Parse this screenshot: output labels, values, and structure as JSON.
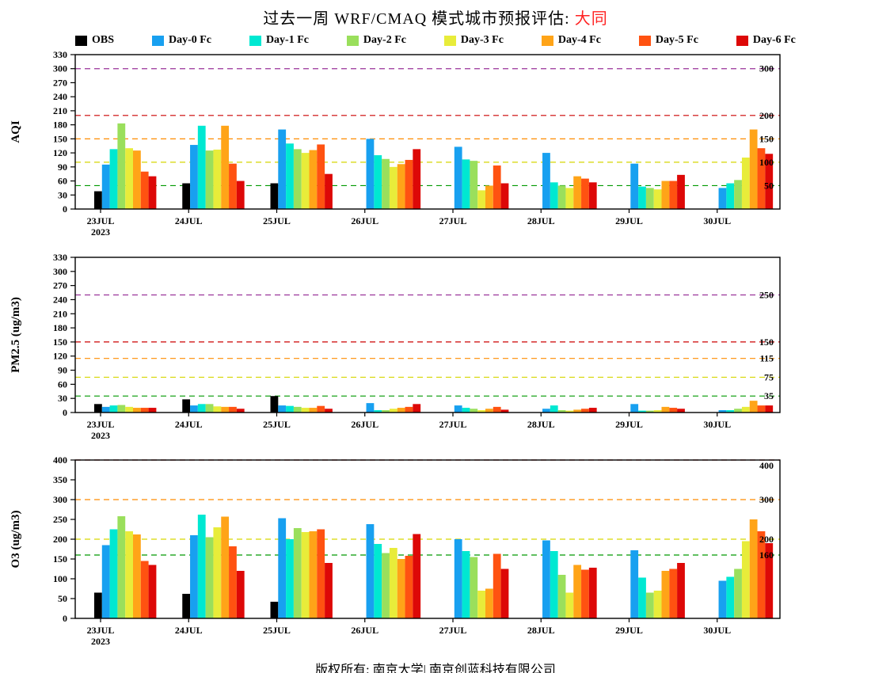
{
  "header": {
    "title_prefix": "过去一周 WRF/CMAQ 模式城市预报评估: ",
    "title_city": "大同",
    "city_color": "#ff2222"
  },
  "legend": {
    "items": [
      {
        "label": "OBS",
        "color": "#000000"
      },
      {
        "label": "Day-0 Fc",
        "color": "#18a0f0"
      },
      {
        "label": "Day-1 Fc",
        "color": "#00e8d2"
      },
      {
        "label": "Day-2 Fc",
        "color": "#9adf5c"
      },
      {
        "label": "Day-3 Fc",
        "color": "#e8ec3a"
      },
      {
        "label": "Day-4 Fc",
        "color": "#ffa418"
      },
      {
        "label": "Day-5 Fc",
        "color": "#ff5211"
      },
      {
        "label": "Day-6 Fc",
        "color": "#dd0807"
      }
    ]
  },
  "footer": {
    "text": "版权所有: 南京大学| 南京创蓝科技有限公司"
  },
  "chart_data": [
    {
      "type": "bar",
      "id": "aqi",
      "ylabel": "AQI",
      "ylim": [
        0,
        330
      ],
      "ytick_step": 30,
      "grid": false,
      "legend_position": "top",
      "categories": [
        "23JUL",
        "24JUL",
        "25JUL",
        "26JUL",
        "27JUL",
        "28JUL",
        "29JUL",
        "30JUL"
      ],
      "x_second_line": {
        "index": 0,
        "label": "2023"
      },
      "series": [
        {
          "name": "OBS",
          "values": [
            38,
            55,
            55,
            null,
            null,
            null,
            null,
            null
          ]
        },
        {
          "name": "Day-0 Fc",
          "values": [
            95,
            137,
            170,
            150,
            133,
            120,
            97,
            45
          ]
        },
        {
          "name": "Day-1 Fc",
          "values": [
            128,
            178,
            140,
            115,
            106,
            57,
            48,
            55
          ]
        },
        {
          "name": "Day-2 Fc",
          "values": [
            183,
            125,
            128,
            107,
            103,
            50,
            45,
            62
          ]
        },
        {
          "name": "Day-3 Fc",
          "values": [
            130,
            127,
            120,
            90,
            40,
            45,
            42,
            110
          ]
        },
        {
          "name": "Day-4 Fc",
          "values": [
            125,
            178,
            126,
            96,
            50,
            70,
            60,
            170
          ]
        },
        {
          "name": "Day-5 Fc",
          "values": [
            80,
            97,
            138,
            105,
            93,
            65,
            60,
            130
          ]
        },
        {
          "name": "Day-6 Fc",
          "values": [
            70,
            60,
            75,
            128,
            55,
            57,
            73,
            118
          ]
        }
      ],
      "thresholds": [
        {
          "value": 50,
          "label": "50",
          "color": "#009900"
        },
        {
          "value": 100,
          "label": "100",
          "color": "#d6d600"
        },
        {
          "value": 150,
          "label": "150",
          "color": "#ff8c00"
        },
        {
          "value": 200,
          "label": "200",
          "color": "#cc0000"
        },
        {
          "value": 300,
          "label": "300",
          "color": "#993399"
        }
      ]
    },
    {
      "type": "bar",
      "id": "pm25",
      "ylabel": "PM2.5 (ug/m3)",
      "ylim": [
        0,
        330
      ],
      "ytick_step": 30,
      "grid": false,
      "legend_position": "top",
      "categories": [
        "23JUL",
        "24JUL",
        "25JUL",
        "26JUL",
        "27JUL",
        "28JUL",
        "29JUL",
        "30JUL"
      ],
      "x_second_line": {
        "index": 0,
        "label": "2023"
      },
      "series": [
        {
          "name": "OBS",
          "values": [
            18,
            28,
            35,
            null,
            null,
            null,
            null,
            null
          ]
        },
        {
          "name": "Day-0 Fc",
          "values": [
            12,
            15,
            15,
            20,
            15,
            8,
            18,
            5
          ]
        },
        {
          "name": "Day-1 Fc",
          "values": [
            15,
            18,
            14,
            5,
            10,
            15,
            4,
            5
          ]
        },
        {
          "name": "Day-2 Fc",
          "values": [
            16,
            18,
            12,
            5,
            8,
            5,
            4,
            8
          ]
        },
        {
          "name": "Day-3 Fc",
          "values": [
            12,
            13,
            10,
            8,
            5,
            4,
            5,
            12
          ]
        },
        {
          "name": "Day-4 Fc",
          "values": [
            10,
            12,
            10,
            10,
            8,
            6,
            12,
            25
          ]
        },
        {
          "name": "Day-5 Fc",
          "values": [
            10,
            12,
            14,
            12,
            12,
            8,
            10,
            15
          ]
        },
        {
          "name": "Day-6 Fc",
          "values": [
            10,
            8,
            8,
            18,
            6,
            10,
            8,
            15
          ]
        }
      ],
      "thresholds": [
        {
          "value": 35,
          "label": "35",
          "color": "#009900"
        },
        {
          "value": 75,
          "label": "75",
          "color": "#d6d600"
        },
        {
          "value": 115,
          "label": "115",
          "color": "#ff8c00"
        },
        {
          "value": 150,
          "label": "150",
          "color": "#cc0000"
        },
        {
          "value": 250,
          "label": "250",
          "color": "#993399"
        }
      ]
    },
    {
      "type": "bar",
      "id": "o3",
      "ylabel": "O3 (ug/m3)",
      "ylim": [
        0,
        400
      ],
      "ytick_step": 50,
      "grid": false,
      "legend_position": "top",
      "categories": [
        "23JUL",
        "24JUL",
        "25JUL",
        "26JUL",
        "27JUL",
        "28JUL",
        "29JUL",
        "30JUL"
      ],
      "x_second_line": {
        "index": 0,
        "label": "2023"
      },
      "series": [
        {
          "name": "OBS",
          "values": [
            65,
            62,
            42,
            null,
            null,
            null,
            null,
            null
          ]
        },
        {
          "name": "Day-0 Fc",
          "values": [
            185,
            210,
            253,
            238,
            200,
            197,
            172,
            95
          ]
        },
        {
          "name": "Day-1 Fc",
          "values": [
            225,
            262,
            200,
            188,
            170,
            170,
            103,
            105
          ]
        },
        {
          "name": "Day-2 Fc",
          "values": [
            258,
            205,
            228,
            165,
            155,
            110,
            65,
            125
          ]
        },
        {
          "name": "Day-3 Fc",
          "values": [
            220,
            230,
            218,
            178,
            70,
            65,
            70,
            195
          ]
        },
        {
          "name": "Day-4 Fc",
          "values": [
            212,
            257,
            220,
            150,
            75,
            135,
            120,
            250
          ]
        },
        {
          "name": "Day-5 Fc",
          "values": [
            145,
            182,
            225,
            158,
            163,
            123,
            125,
            220
          ]
        },
        {
          "name": "Day-6 Fc",
          "values": [
            135,
            120,
            140,
            213,
            125,
            128,
            140,
            190
          ]
        }
      ],
      "thresholds": [
        {
          "value": 160,
          "label": "160",
          "color": "#009900"
        },
        {
          "value": 200,
          "label": "200",
          "color": "#d6d600"
        },
        {
          "value": 300,
          "label": "300",
          "color": "#ff8c00"
        },
        {
          "value": 400,
          "label": "400",
          "color": "#cc0000"
        }
      ]
    }
  ]
}
